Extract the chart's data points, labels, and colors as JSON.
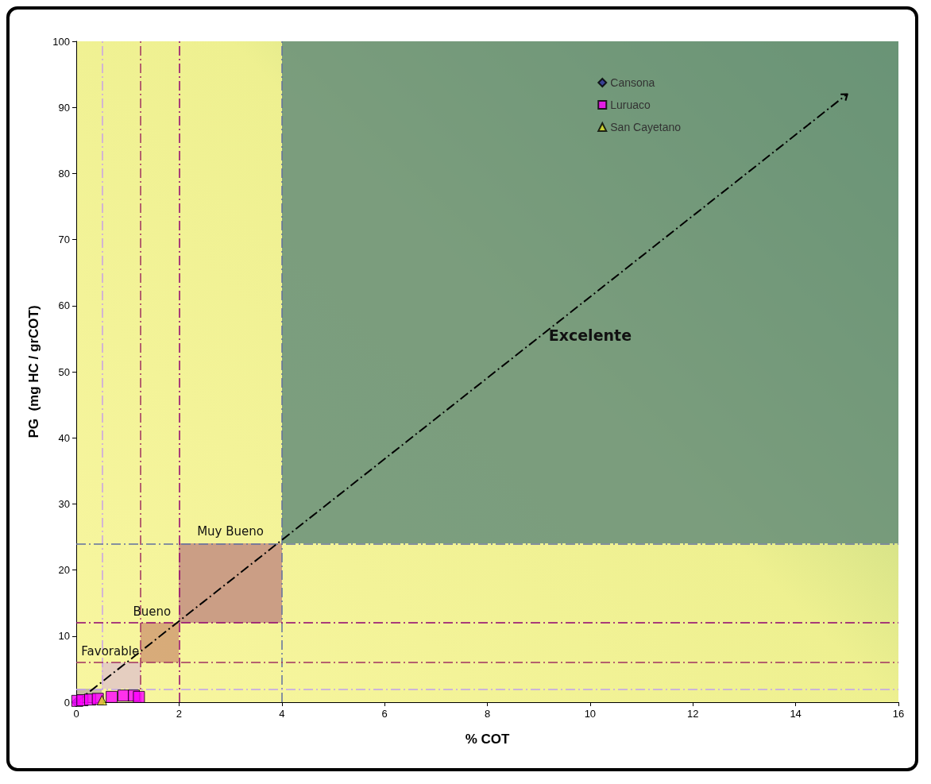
{
  "chart_data": {
    "type": "scatter",
    "xlabel": "% COT",
    "ylabel": "PG  (mg HC / grCOT)",
    "xlim": [
      0,
      16
    ],
    "xticks": [
      0,
      2,
      4,
      6,
      8,
      10,
      12,
      14,
      16
    ],
    "ylim": [
      0,
      100
    ],
    "yticks": [
      0,
      10,
      20,
      30,
      40,
      50,
      60,
      70,
      80,
      90,
      100
    ],
    "grid": false,
    "legend": "top right",
    "series": [
      {
        "name": "Cansona",
        "color": "#2a2a9a",
        "marker": "diamond",
        "x": [
          0.0
        ],
        "values": [
          0.0
        ]
      },
      {
        "name": "Luruaco",
        "color": "#ff00ff",
        "marker": "square",
        "x": [
          0.02,
          0.12,
          0.27,
          0.42,
          0.69,
          0.92,
          1.12,
          1.22
        ],
        "values": [
          0.2,
          0.3,
          0.4,
          0.5,
          0.8,
          1.0,
          1.0,
          0.8
        ]
      },
      {
        "name": "San Cayetano",
        "color": "#e0e020",
        "marker": "triangle",
        "x": [
          0.5
        ],
        "values": [
          0.3
        ]
      },
      {
        "type": "line",
        "color": "#000000",
        "line_style": "dashed",
        "x": [
          0,
          15
        ],
        "values": [
          0,
          92
        ]
      }
    ],
    "ref_lines": [
      {
        "axis": "x",
        "value": 0.5,
        "color": "#c8a0e8",
        "line_style": "dashed"
      },
      {
        "axis": "x",
        "value": 1.25,
        "color": "#a03060",
        "line_style": "dashed"
      },
      {
        "axis": "x",
        "value": 2,
        "color": "#900070",
        "line_style": "dashed"
      },
      {
        "axis": "x",
        "value": 4,
        "color": "#6070a0",
        "line_style": "dashed"
      },
      {
        "axis": "y",
        "value": 2,
        "color": "#c0a0f0",
        "line_style": "dashed"
      },
      {
        "axis": "y",
        "value": 6,
        "color": "#a03060",
        "line_style": "dashed"
      },
      {
        "axis": "y",
        "value": 12,
        "color": "#900070",
        "line_style": "dashed"
      },
      {
        "axis": "y",
        "value": 24,
        "color": "#6070a0",
        "line_style": "dashed"
      }
    ],
    "annotations": [
      "Favorable",
      "Bueno",
      "Muy Bueno",
      "Excelente"
    ]
  }
}
